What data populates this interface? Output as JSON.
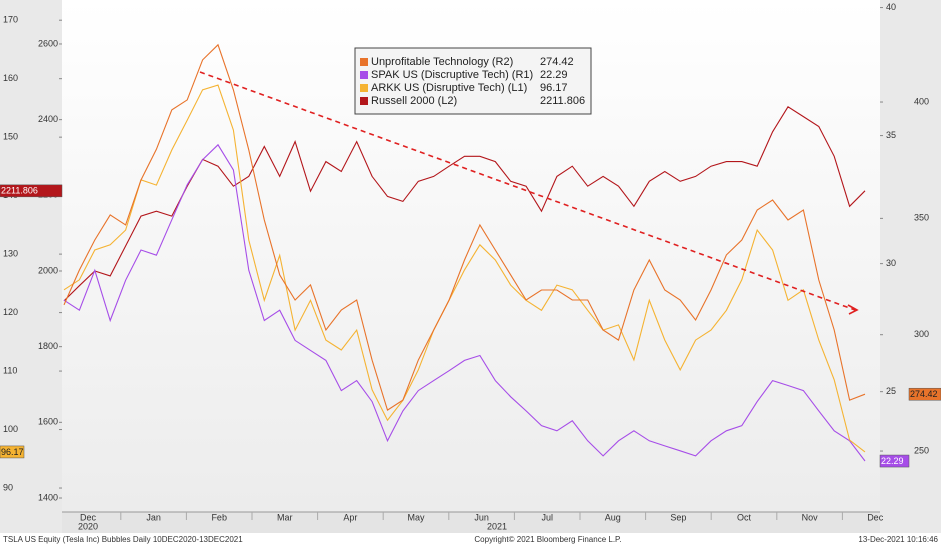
{
  "chart_data": {
    "type": "line",
    "footer_left": "TSLA US Equity (Tesla Inc) Bubbles  Daily 10DEC2020-13DEC2021",
    "footer_center": "Copyright© 2021 Bloomberg Finance L.P.",
    "footer_right": "13-Dec-2021 10:16:46",
    "xlabels": [
      "Dec",
      "Jan",
      "Feb",
      "Mar",
      "Apr",
      "May",
      "Jun",
      "Jul",
      "Aug",
      "Sep",
      "Oct",
      "Nov",
      "Dec"
    ],
    "years": [
      "2020",
      "2021"
    ],
    "axes": {
      "L1": {
        "lim": [
          85.9,
          172.6
        ],
        "ticks": [
          90,
          100,
          110,
          120,
          130,
          140,
          150,
          160,
          170
        ]
      },
      "L2": {
        "lim": [
          1363,
          2703
        ],
        "ticks": [
          1400,
          1600,
          1800,
          2000,
          2200,
          2400,
          2600
        ]
      },
      "R1": {
        "lim": [
          20.3,
          40.1
        ],
        "ticks": [
          25,
          30,
          35,
          40
        ]
      },
      "R2": {
        "lim": [
          223.8,
          441.7
        ],
        "ticks": [
          250,
          300,
          350,
          400
        ]
      }
    },
    "series": [
      {
        "name": "Unprofitable Technology (R2)",
        "axis": "R2",
        "color": "#e8732a",
        "last": 274.42,
        "values": [
          312.8,
          327.8,
          340.7,
          351.5,
          347.2,
          366.5,
          379.7,
          396.6,
          400.9,
          418.1,
          424.6,
          405.2,
          379.4,
          349.3,
          325.7,
          314.9,
          321.4,
          302,
          310.6,
          314.9,
          289.1,
          267.6,
          271.9,
          289.1,
          302,
          314.9,
          332.1,
          347.2,
          336.4,
          325.7,
          314.9,
          319.2,
          319.2,
          314.9,
          314.9,
          302,
          297.7,
          319.2,
          332.1,
          319.2,
          314.9,
          306.3,
          319.2,
          334.3,
          340.7,
          353.6,
          357.9,
          349.3,
          353.6,
          323.5,
          302,
          271.9,
          274.42
        ]
      },
      {
        "name": "SPAK US (Discruptive Tech) (R1)",
        "axis": "R1",
        "color": "#a64de8",
        "last": 22.29,
        "values": [
          28.57,
          28.18,
          29.74,
          27.78,
          29.35,
          30.53,
          30.33,
          31.71,
          33.08,
          34.06,
          34.64,
          33.66,
          29.74,
          27.78,
          28.18,
          27,
          26.61,
          26.22,
          25.04,
          25.43,
          24.61,
          23.08,
          24.25,
          25.04,
          25.43,
          25.82,
          26.22,
          26.41,
          25.43,
          24.8,
          24.25,
          23.67,
          23.47,
          23.86,
          23.08,
          22.49,
          23.08,
          23.47,
          23.08,
          22.88,
          22.69,
          22.49,
          23.08,
          23.47,
          23.67,
          24.61,
          25.43,
          25.24,
          25.04,
          24.25,
          23.47,
          23.08,
          22.29
        ]
      },
      {
        "name": "ARKK US (Disruptive Tech) (L1)",
        "axis": "L1",
        "color": "#f5b332",
        "last": 96.17,
        "values": [
          123.9,
          125.6,
          130.7,
          131.6,
          134.1,
          142.7,
          141.8,
          147.8,
          152.9,
          158.1,
          158.9,
          151.2,
          132.4,
          122.1,
          129.8,
          117,
          122.1,
          115.3,
          113.6,
          117,
          106.8,
          101.6,
          105,
          110.2,
          117,
          122.1,
          127.3,
          131.6,
          129,
          124.7,
          122.1,
          120.4,
          124.7,
          123.9,
          120.4,
          117,
          117.9,
          111.9,
          122.1,
          115.3,
          110.2,
          115.3,
          117,
          120.4,
          125.6,
          134.1,
          130.7,
          122.1,
          123.9,
          115.3,
          108.5,
          98.2,
          96.17
        ]
      },
      {
        "name": "Russell 2000 (L2)",
        "axis": "L2",
        "color": "#b3161b",
        "last": 2211.806,
        "values": [
          1921,
          1961,
          2000,
          1987,
          2066,
          2145,
          2158,
          2145,
          2224,
          2295,
          2277,
          2224,
          2250,
          2329,
          2250,
          2342,
          2211,
          2289,
          2263,
          2342,
          2250,
          2197,
          2184,
          2237,
          2250,
          2277,
          2303,
          2303,
          2289,
          2237,
          2224,
          2158,
          2250,
          2277,
          2224,
          2250,
          2224,
          2171,
          2237,
          2263,
          2237,
          2250,
          2277,
          2289,
          2289,
          2277,
          2368,
          2434,
          2408,
          2382,
          2303,
          2171,
          2211.806
        ]
      }
    ]
  }
}
